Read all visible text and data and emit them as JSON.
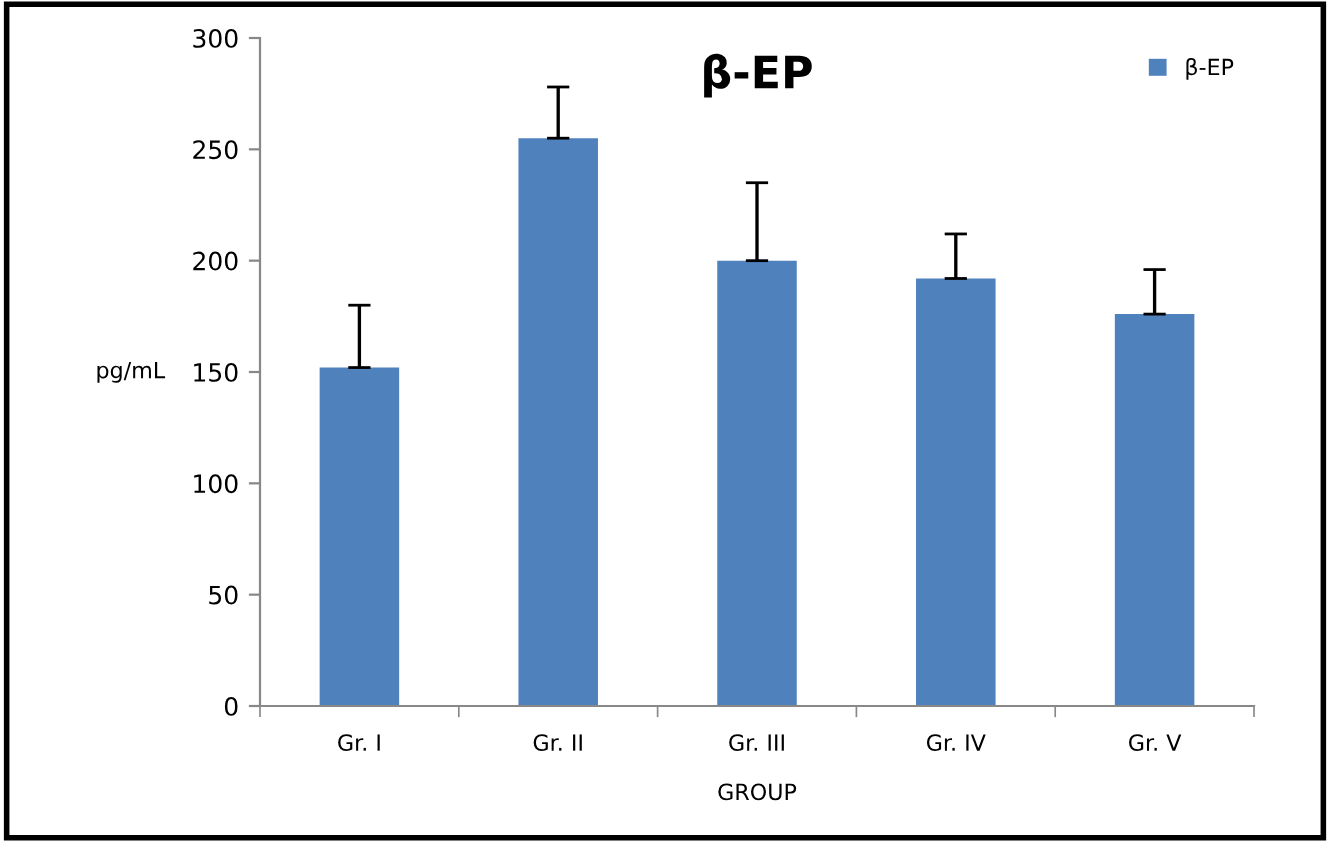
{
  "chart_data": {
    "type": "bar",
    "title": "β-EP",
    "xlabel": "GROUP",
    "ylabel": "pg/mL",
    "categories": [
      "Gr. I",
      "Gr. II",
      "Gr. III",
      "Gr. IV",
      "Gr. V"
    ],
    "series": [
      {
        "name": "β-EP",
        "color": "#4f81bd",
        "values": [
          152,
          255,
          200,
          192,
          176
        ],
        "errors": [
          [
            152,
            180
          ],
          [
            255,
            278
          ],
          [
            200,
            235
          ],
          [
            192,
            212
          ],
          [
            176,
            196
          ]
        ]
      }
    ],
    "ylim": [
      0,
      300
    ],
    "yticks": [
      0,
      50,
      100,
      150,
      200,
      250,
      300
    ],
    "grid": false,
    "legend": "top right"
  }
}
